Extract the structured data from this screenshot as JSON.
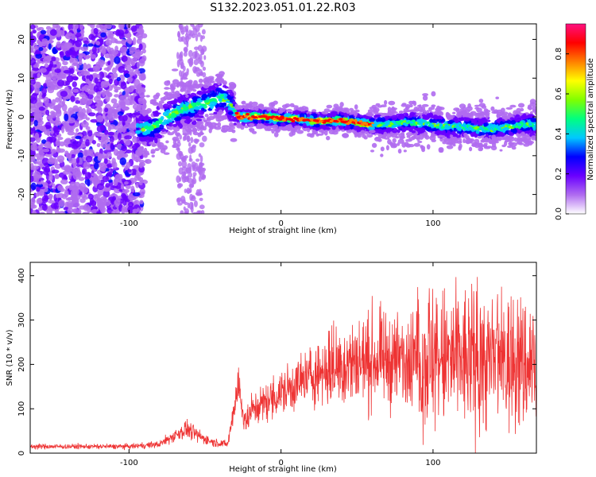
{
  "title": "S132.2023.051.01.22.R03",
  "chart_data": [
    {
      "type": "heatmap",
      "xlabel": "Height of straight line (km)",
      "ylabel": "Frequency (Hz)",
      "xlim": [
        -165,
        168
      ],
      "ylim": [
        -25,
        24
      ],
      "xticks": [
        -100,
        0,
        100
      ],
      "yticks": [
        -20,
        -10,
        0,
        10,
        20
      ],
      "colorbar": {
        "label": "Normalized spectral amplitude",
        "range": [
          0.0,
          0.95
        ],
        "ticks": [
          0.0,
          0.2,
          0.4,
          0.6,
          0.8
        ],
        "colors": [
          "#ffffff",
          "#b06cf0",
          "#6a00ff",
          "#0000ff",
          "#00c8ff",
          "#00ff80",
          "#80ff00",
          "#ffff00",
          "#ff8000",
          "#ff0000",
          "#ff1080"
        ]
      },
      "ridge": {
        "x": [
          -85,
          -75,
          -65,
          -55,
          -45,
          -38,
          -33,
          -28,
          -20,
          -10,
          0,
          10,
          20,
          30,
          40,
          50,
          60,
          70,
          80,
          90,
          100,
          110,
          120,
          130,
          140,
          150,
          160,
          168
        ],
        "y": [
          -3,
          0,
          2,
          3,
          4,
          5,
          3,
          0,
          0,
          0,
          -0.5,
          -0.5,
          -1,
          -1,
          -1,
          -1.5,
          -2,
          -2,
          -1.5,
          -1.5,
          -2,
          -2.5,
          -2.5,
          -3,
          -3,
          -2.5,
          -2,
          -2
        ]
      }
    },
    {
      "type": "line",
      "xlabel": "Height of straight line (km)",
      "ylabel": "SNR (10 * v/v)",
      "xlim": [
        -165,
        168
      ],
      "ylim": [
        0,
        430
      ],
      "xticks": [
        -100,
        0,
        100
      ],
      "yticks": [
        0,
        100,
        200,
        300,
        400
      ],
      "color": "#ee3333",
      "envelope": {
        "x": [
          -165,
          -100,
          -80,
          -70,
          -62,
          -55,
          -45,
          -35,
          -30,
          -28,
          -26,
          -22,
          -20,
          -10,
          0,
          10,
          20,
          30,
          40,
          50,
          60,
          80,
          100,
          120,
          140,
          160,
          168
        ],
        "y": [
          15,
          15,
          20,
          40,
          55,
          40,
          25,
          20,
          120,
          165,
          100,
          70,
          95,
          115,
          135,
          155,
          175,
          190,
          200,
          205,
          210,
          210,
          210,
          210,
          205,
          200,
          200
        ]
      }
    }
  ]
}
